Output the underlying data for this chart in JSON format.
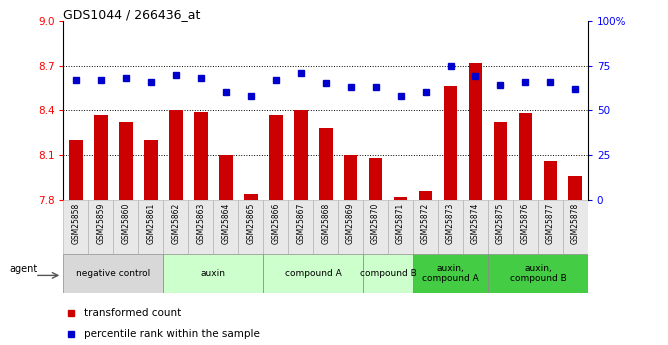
{
  "title": "GDS1044 / 266436_at",
  "samples": [
    "GSM25858",
    "GSM25859",
    "GSM25860",
    "GSM25861",
    "GSM25862",
    "GSM25863",
    "GSM25864",
    "GSM25865",
    "GSM25866",
    "GSM25867",
    "GSM25868",
    "GSM25869",
    "GSM25870",
    "GSM25871",
    "GSM25872",
    "GSM25873",
    "GSM25874",
    "GSM25875",
    "GSM25876",
    "GSM25877",
    "GSM25878"
  ],
  "bar_values": [
    8.2,
    8.37,
    8.32,
    8.2,
    8.4,
    8.39,
    8.1,
    7.84,
    8.37,
    8.4,
    8.28,
    8.1,
    8.08,
    7.82,
    7.86,
    8.56,
    8.72,
    8.32,
    8.38,
    8.06,
    7.96
  ],
  "dot_values": [
    67,
    67,
    68,
    66,
    70,
    68,
    60,
    58,
    67,
    71,
    65,
    63,
    63,
    58,
    60,
    75,
    69,
    64,
    66,
    66,
    62
  ],
  "ylim_left": [
    7.8,
    9.0
  ],
  "ylim_right": [
    0,
    100
  ],
  "yticks_left": [
    7.8,
    8.1,
    8.4,
    8.7,
    9.0
  ],
  "yticks_right": [
    0,
    25,
    50,
    75,
    100
  ],
  "ytick_labels_right": [
    "0",
    "25",
    "50",
    "75",
    "100%"
  ],
  "hlines": [
    8.1,
    8.4,
    8.7
  ],
  "bar_color": "#cc0000",
  "dot_color": "#0000cc",
  "bg_plot": "#ffffff",
  "groups": [
    {
      "label": "negative control",
      "start": 0,
      "end": 4,
      "color": "#d8d8d8"
    },
    {
      "label": "auxin",
      "start": 4,
      "end": 8,
      "color": "#ccffcc"
    },
    {
      "label": "compound A",
      "start": 8,
      "end": 12,
      "color": "#ccffcc"
    },
    {
      "label": "compound B",
      "start": 12,
      "end": 14,
      "color": "#ccffcc"
    },
    {
      "label": "auxin,\ncompound A",
      "start": 14,
      "end": 17,
      "color": "#44cc44"
    },
    {
      "label": "auxin,\ncompound B",
      "start": 17,
      "end": 21,
      "color": "#44cc44"
    }
  ],
  "legend_red": "transformed count",
  "legend_blue": "percentile rank within the sample",
  "agent_label": "agent"
}
